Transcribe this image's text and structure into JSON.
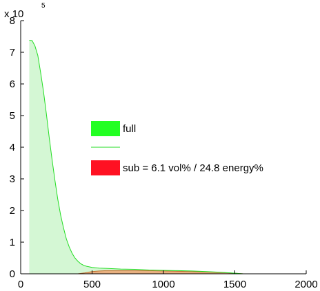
{
  "chart_data": {
    "type": "area",
    "xlim": [
      0,
      2000
    ],
    "ylim": [
      0,
      8
    ],
    "y_multiplier": "x 10",
    "y_exponent": "5",
    "x_ticks": [
      "0",
      "500",
      "1000",
      "1500",
      "2000"
    ],
    "y_ticks": [
      "0",
      "1",
      "2",
      "3",
      "4",
      "5",
      "6",
      "7",
      "8"
    ],
    "grid": false,
    "legend_position": "center",
    "colors": {
      "full_line": "#22dd22",
      "full_fill": "#d4f7d4",
      "sub_fill": "#e8b080",
      "sub_line": "#c07030",
      "legend_full": "#22ff22",
      "legend_sub": "#ff1122"
    },
    "legend": [
      {
        "label": "full",
        "swatch": "full_patch"
      },
      {
        "label": "",
        "swatch": "full_line"
      },
      {
        "label": "sub = 6.1 vol% / 24.8 energy%",
        "swatch": "sub_patch"
      }
    ],
    "series": [
      {
        "name": "full",
        "x": [
          60,
          80,
          100,
          120,
          140,
          160,
          180,
          200,
          220,
          240,
          260,
          280,
          300,
          320,
          340,
          360,
          380,
          400,
          420,
          440,
          460,
          480,
          500,
          550,
          600,
          700,
          800,
          900,
          1000,
          1100,
          1200,
          1300,
          1400,
          1500,
          1560
        ],
        "y": [
          7.38,
          7.37,
          7.2,
          6.9,
          6.35,
          5.75,
          5.05,
          4.3,
          3.6,
          2.95,
          2.35,
          1.85,
          1.45,
          1.1,
          0.85,
          0.65,
          0.5,
          0.4,
          0.32,
          0.27,
          0.24,
          0.22,
          0.2,
          0.18,
          0.17,
          0.15,
          0.14,
          0.12,
          0.11,
          0.1,
          0.09,
          0.07,
          0.05,
          0.02,
          0.0
        ]
      },
      {
        "name": "sub",
        "x": [
          400,
          450,
          500,
          550,
          600,
          700,
          800,
          900,
          1000,
          1100,
          1200,
          1300,
          1400,
          1500,
          1560
        ],
        "y": [
          0.0,
          0.03,
          0.07,
          0.09,
          0.1,
          0.1,
          0.1,
          0.1,
          0.09,
          0.08,
          0.07,
          0.06,
          0.04,
          0.02,
          0.0
        ]
      }
    ]
  }
}
